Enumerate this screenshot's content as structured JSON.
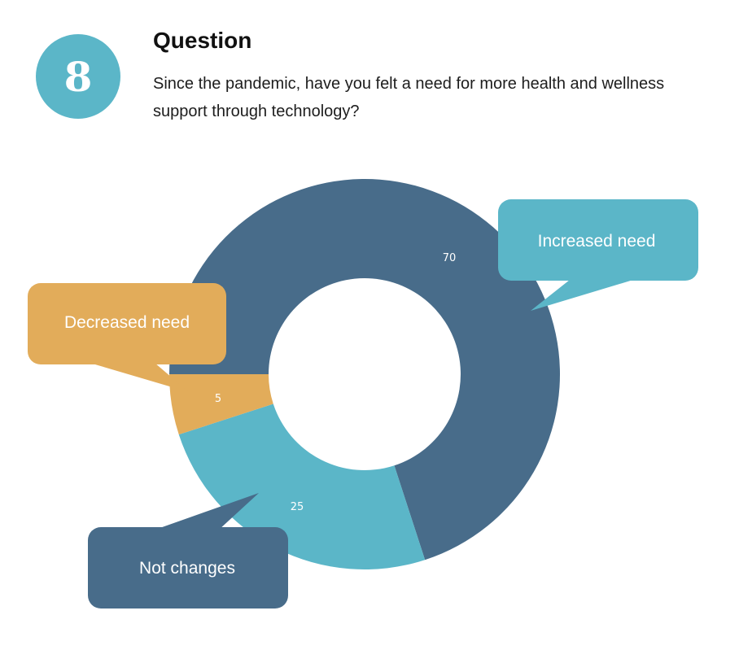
{
  "header": {
    "number": "8",
    "title": "Question",
    "question": "Since the pandemic, have you felt a need for more health and wellness support through technology?"
  },
  "colors": {
    "badge": "#5bb6c8",
    "increased": "#486c8a",
    "not_changes": "#5bb6c8",
    "decreased": "#e2ac5a"
  },
  "chart_data": {
    "type": "pie",
    "variant": "donut",
    "title": "",
    "categories": [
      "Increased need",
      "Not changes",
      "Decreased need"
    ],
    "values": [
      70,
      25,
      5
    ],
    "slice_colors": [
      "#486c8a",
      "#5bb6c8",
      "#e2ac5a"
    ],
    "legend": "callouts",
    "callout_labels": {
      "increased": "Increased need",
      "not_changes": "Not changes",
      "decreased": "Decreased need"
    },
    "value_labels": [
      "70",
      "25",
      "5"
    ]
  }
}
